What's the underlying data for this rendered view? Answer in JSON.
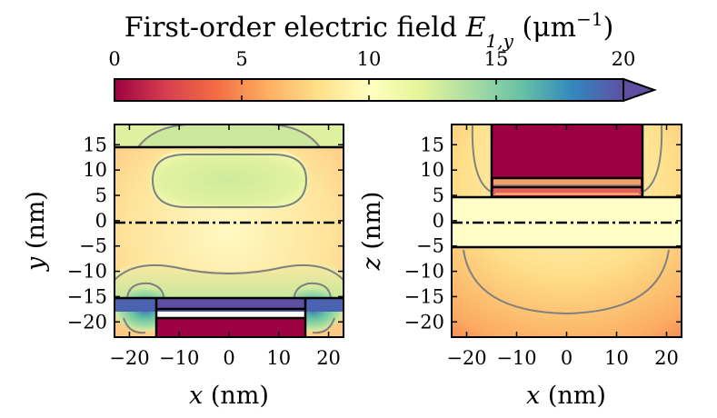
{
  "chart_data": {
    "type": "heatmap",
    "colorbar": {
      "title_text": "First-order electric field",
      "title_symbol": "E",
      "title_subscript": "1,y",
      "title_unit": "(μm",
      "title_unit_exp": "−1",
      "title_unit_close": ")",
      "min": 0,
      "max": 20,
      "extend": "max",
      "ticks": [
        0,
        5,
        10,
        15,
        20
      ],
      "tick_labels": [
        "0",
        "5",
        "10",
        "15",
        "20"
      ],
      "colormap": "Spectral",
      "colors": [
        "#9e0142",
        "#d53e4f",
        "#f46d43",
        "#fdae61",
        "#fee08b",
        "#ffffbf",
        "#e6f598",
        "#abdda4",
        "#66c2a5",
        "#3288bd",
        "#5e4fa2"
      ]
    },
    "panels": [
      {
        "name": "xy-plane",
        "xlabel_var": "x",
        "xlabel_unit": "(nm)",
        "ylabel_var": "y",
        "ylabel_unit": "(nm)",
        "xlim": [
          -23,
          23
        ],
        "ylim": [
          -23,
          19
        ],
        "xticks": [
          -20,
          -10,
          0,
          10,
          20
        ],
        "xtick_labels": [
          "−20",
          "−10",
          "0",
          "10",
          "20"
        ],
        "yticks": [
          -20,
          -15,
          -10,
          -5,
          0,
          5,
          10,
          15
        ],
        "ytick_labels": [
          "−20",
          "−15",
          "−10",
          "−5",
          "0",
          "5",
          "10",
          "15"
        ],
        "interfaces_y": [
          15,
          -15
        ],
        "symmetry_line_y": 0,
        "metal_block": {
          "x": [
            -15,
            15
          ],
          "y": [
            -23,
            -19
          ],
          "value": 0
        },
        "bracket": {
          "x": [
            -15,
            15
          ],
          "y": [
            -19,
            -15
          ],
          "inner_lines_y": [
            -17,
            -18.5
          ]
        },
        "field_regions": [
          {
            "label": "top-lobe",
            "x": [
              -17,
              17
            ],
            "y": [
              5,
              14
            ],
            "value": 12
          },
          {
            "label": "bottom-left-hotspot",
            "x": [
              -23,
              -12
            ],
            "y": [
              -23,
              -15
            ],
            "value": 18
          },
          {
            "label": "bottom-right-hotspot",
            "x": [
              12,
              23
            ],
            "y": [
              -23,
              -15
            ],
            "value": 18
          },
          {
            "label": "bottom-strip",
            "x": [
              -15,
              15
            ],
            "y": [
              -17,
              -15
            ],
            "value": 20
          }
        ]
      },
      {
        "name": "xz-plane",
        "xlabel_var": "x",
        "xlabel_unit": "(nm)",
        "ylabel_var": "z",
        "ylabel_unit": "(nm)",
        "xlim": [
          -23,
          23
        ],
        "ylim": [
          -23,
          19
        ],
        "xticks": [
          -20,
          -10,
          0,
          10,
          20
        ],
        "xtick_labels": [
          "−20",
          "−10",
          "0",
          "10",
          "20"
        ],
        "yticks": [
          -20,
          -15,
          -10,
          -5,
          0,
          5,
          10,
          15
        ],
        "ytick_labels": [
          "−20",
          "−15",
          "−10",
          "−5",
          "0",
          "5",
          "10",
          "15"
        ],
        "interfaces_z": [
          5,
          -5
        ],
        "symmetry_line_z": 0,
        "metal_block": {
          "x": [
            -15,
            15
          ],
          "y": [
            5,
            19
          ],
          "value": 0
        },
        "metal_inner_lines_z": [
          9,
          7
        ]
      }
    ]
  }
}
